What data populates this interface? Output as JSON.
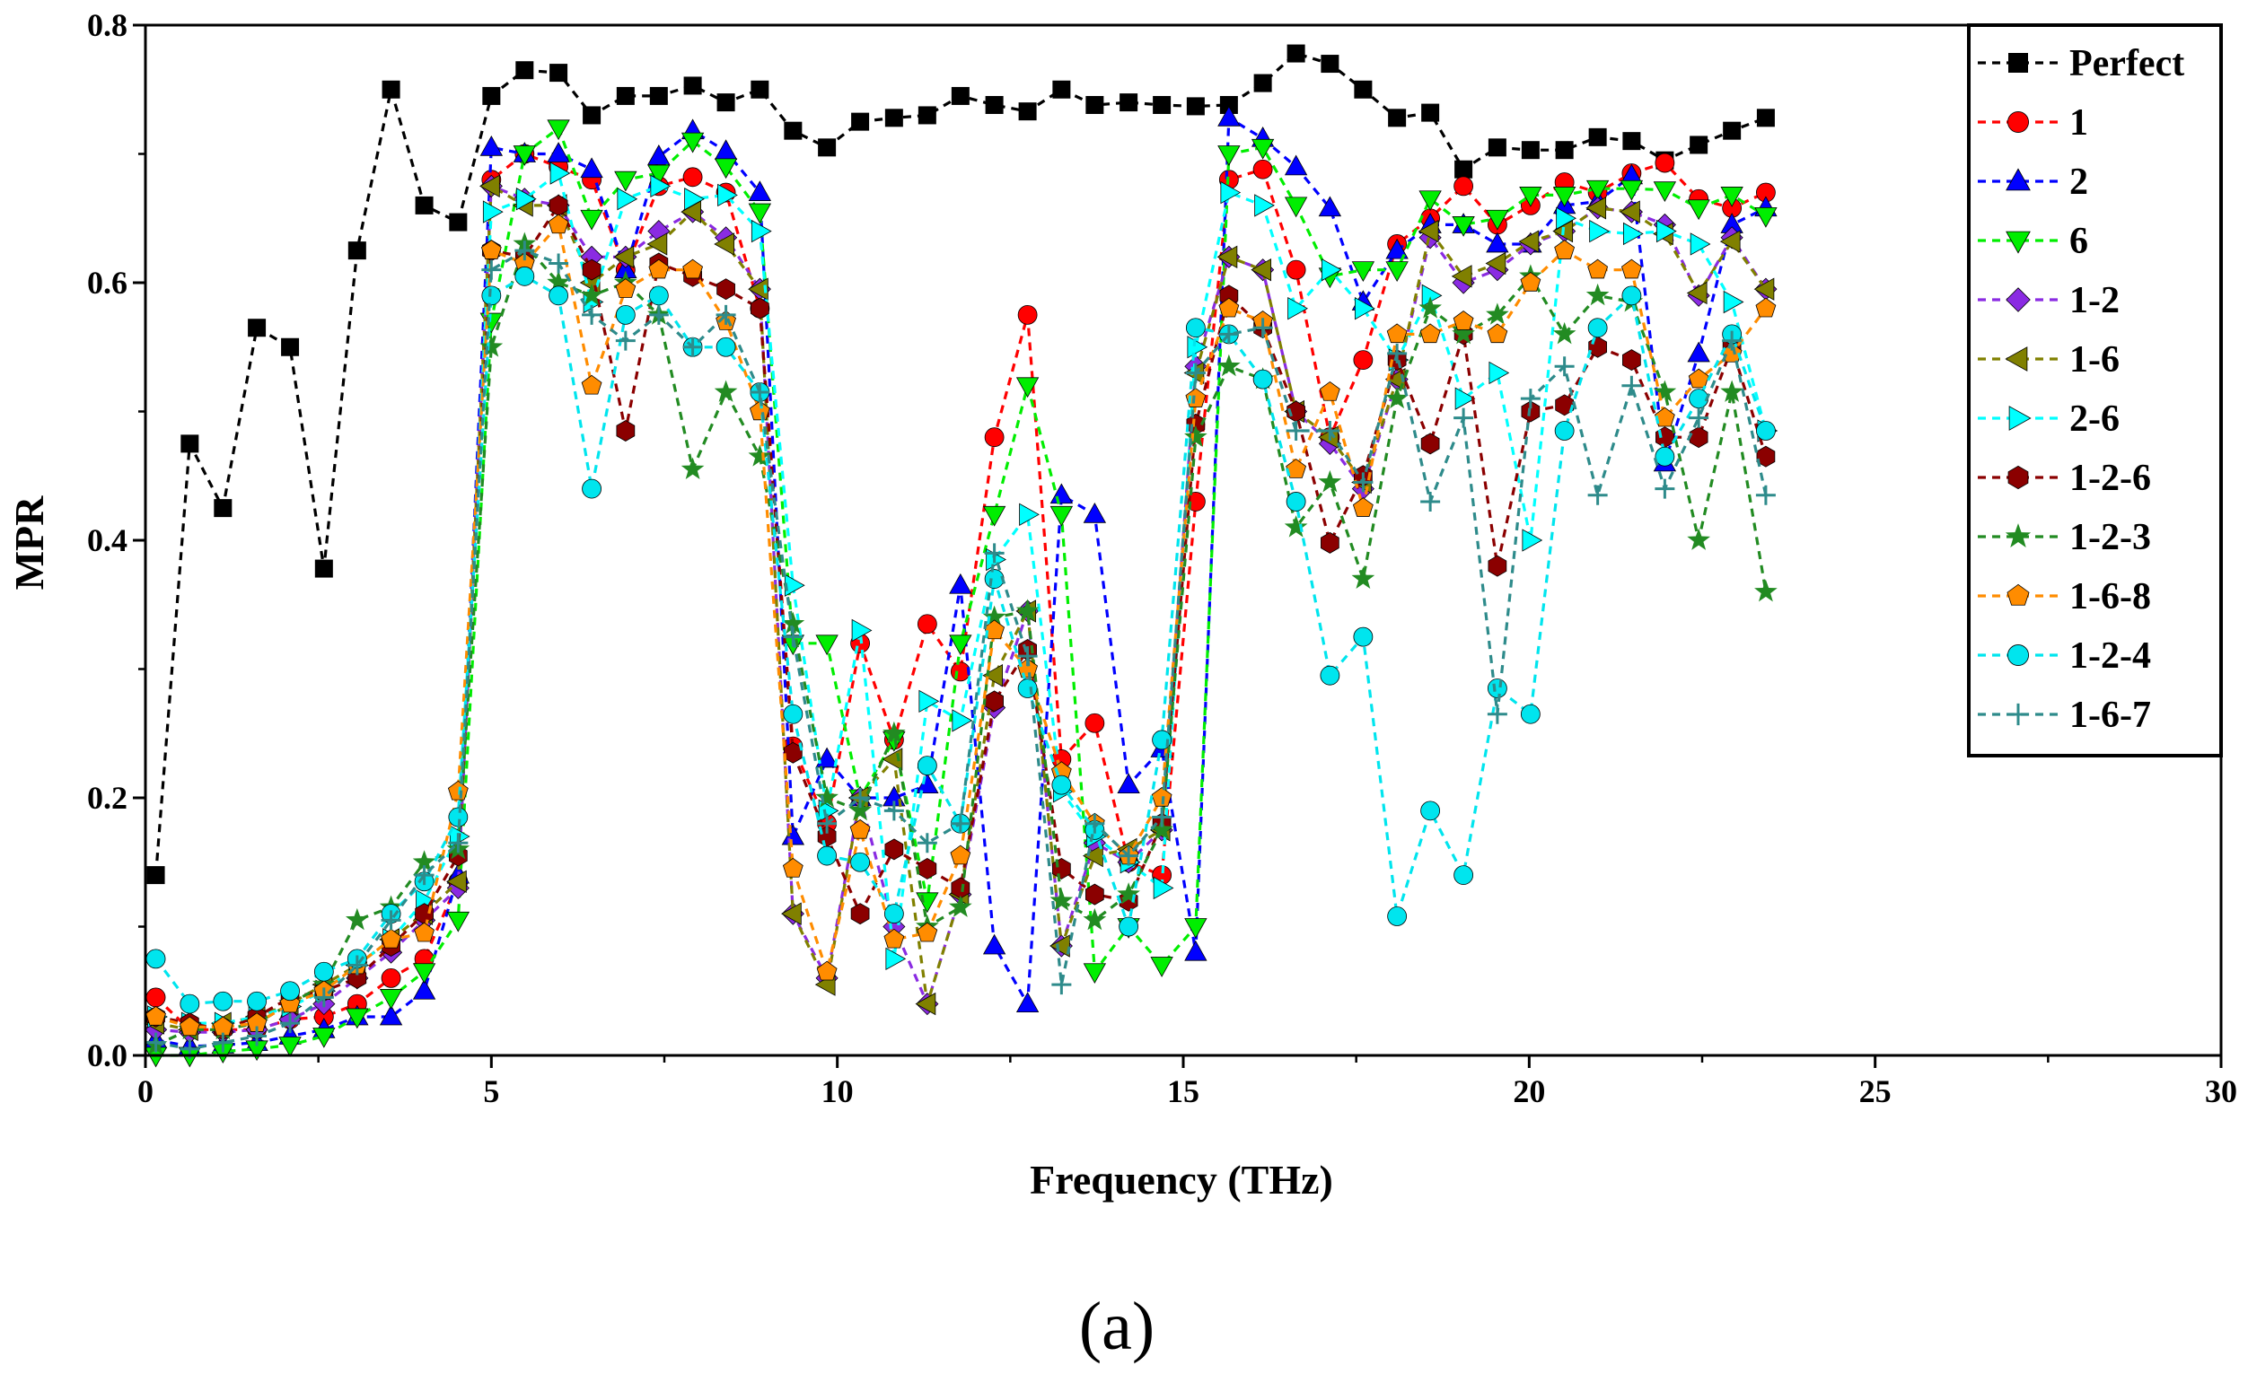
{
  "chart_data": {
    "type": "line",
    "title": "",
    "caption": "(a)",
    "xlabel": "Frequency (THz)",
    "ylabel": "MPR",
    "xlim": [
      0,
      30
    ],
    "ylim": [
      0,
      0.8
    ],
    "x_ticks": [
      0,
      5,
      10,
      15,
      20,
      25,
      30
    ],
    "y_ticks": [
      0.0,
      0.2,
      0.4,
      0.6,
      0.8
    ],
    "x_tick_labels": [
      "0",
      "5",
      "10",
      "15",
      "20",
      "25",
      "30"
    ],
    "y_tick_labels": [
      "0.0",
      "0.2",
      "0.4",
      "0.6",
      "0.8"
    ],
    "legend_position": "top-right",
    "x": [
      0.15,
      0.64,
      1.12,
      1.61,
      2.09,
      2.58,
      3.06,
      3.55,
      4.03,
      4.52,
      5.0,
      5.48,
      5.97,
      6.45,
      6.94,
      7.42,
      7.91,
      8.39,
      8.88,
      9.36,
      9.85,
      10.33,
      10.82,
      11.3,
      11.78,
      12.27,
      12.75,
      13.24,
      13.72,
      14.21,
      14.69,
      15.18,
      15.66,
      16.15,
      16.63,
      17.12,
      17.6,
      18.09,
      18.57,
      19.05,
      19.54,
      20.02,
      20.51,
      20.99,
      21.48,
      21.96,
      22.45,
      22.93,
      23.42
    ],
    "series": [
      {
        "name": "Perfect",
        "color": "#000000",
        "marker": "square",
        "values": [
          0.14,
          0.475,
          0.425,
          0.565,
          0.55,
          0.378,
          0.625,
          0.75,
          0.66,
          0.647,
          0.745,
          0.765,
          0.763,
          0.73,
          0.745,
          0.745,
          0.753,
          0.74,
          0.75,
          0.718,
          0.705,
          0.725,
          0.728,
          0.73,
          0.745,
          0.738,
          0.733,
          0.75,
          0.738,
          0.74,
          0.738,
          0.737,
          0.738,
          0.755,
          0.778,
          0.77,
          0.75,
          0.728,
          0.732,
          0.688,
          0.705,
          0.703,
          0.703,
          0.713,
          0.71,
          0.695,
          0.707,
          0.718,
          0.728
        ]
      },
      {
        "name": "1",
        "color": "#ff0000",
        "marker": "circle",
        "values": [
          0.045,
          0.02,
          0.02,
          0.02,
          0.028,
          0.03,
          0.04,
          0.06,
          0.075,
          0.135,
          0.68,
          0.7,
          0.69,
          0.68,
          0.61,
          0.675,
          0.682,
          0.67,
          0.58,
          0.24,
          0.18,
          0.32,
          0.245,
          0.335,
          0.298,
          0.48,
          0.575,
          0.23,
          0.258,
          0.15,
          0.14,
          0.43,
          0.68,
          0.688,
          0.61,
          0.48,
          0.54,
          0.63,
          0.65,
          0.675,
          0.645,
          0.66,
          0.678,
          0.67,
          0.685,
          0.693,
          0.665,
          0.658,
          0.67
        ]
      },
      {
        "name": "2",
        "color": "#0000ff",
        "marker": "triangle-up",
        "values": [
          0.012,
          0.007,
          0.008,
          0.01,
          0.015,
          0.02,
          0.03,
          0.03,
          0.05,
          0.14,
          0.705,
          0.7,
          0.7,
          0.688,
          0.61,
          0.698,
          0.718,
          0.702,
          0.67,
          0.17,
          0.23,
          0.2,
          0.2,
          0.21,
          0.365,
          0.085,
          0.04,
          0.435,
          0.42,
          0.21,
          0.238,
          0.08,
          0.728,
          0.712,
          0.69,
          0.658,
          0.585,
          0.625,
          0.645,
          0.645,
          0.63,
          0.63,
          0.66,
          0.663,
          0.683,
          0.46,
          0.545,
          0.645,
          0.658
        ]
      },
      {
        "name": "6",
        "color": "#00ee00",
        "marker": "triangle-down",
        "values": [
          0.0,
          0.0,
          0.003,
          0.005,
          0.008,
          0.015,
          0.03,
          0.045,
          0.065,
          0.105,
          0.57,
          0.7,
          0.72,
          0.65,
          0.68,
          0.685,
          0.71,
          0.69,
          0.655,
          0.32,
          0.32,
          0.2,
          0.245,
          0.12,
          0.32,
          0.42,
          0.52,
          0.42,
          0.065,
          0.1,
          0.07,
          0.1,
          0.7,
          0.705,
          0.66,
          0.605,
          0.61,
          0.61,
          0.665,
          0.645,
          0.65,
          0.668,
          0.668,
          0.673,
          0.673,
          0.672,
          0.658,
          0.668,
          0.652
        ]
      },
      {
        "name": "1-2",
        "color": "#8a2be2",
        "marker": "diamond",
        "values": [
          0.02,
          0.018,
          0.018,
          0.02,
          0.028,
          0.04,
          0.06,
          0.08,
          0.105,
          0.13,
          0.675,
          0.665,
          0.66,
          0.62,
          0.62,
          0.64,
          0.655,
          0.635,
          0.595,
          0.11,
          0.06,
          0.2,
          0.1,
          0.04,
          0.125,
          0.27,
          0.345,
          0.085,
          0.165,
          0.15,
          0.175,
          0.535,
          0.62,
          0.61,
          0.5,
          0.475,
          0.44,
          0.525,
          0.635,
          0.6,
          0.61,
          0.63,
          0.64,
          0.658,
          0.655,
          0.645,
          0.59,
          0.635,
          0.595
        ]
      },
      {
        "name": "1-6",
        "color": "#808000",
        "marker": "triangle-left",
        "values": [
          0.025,
          0.02,
          0.025,
          0.03,
          0.04,
          0.055,
          0.07,
          0.09,
          0.11,
          0.135,
          0.675,
          0.66,
          0.66,
          0.6,
          0.62,
          0.63,
          0.655,
          0.63,
          0.595,
          0.11,
          0.055,
          0.2,
          0.23,
          0.04,
          0.125,
          0.295,
          0.345,
          0.085,
          0.155,
          0.16,
          0.175,
          0.53,
          0.62,
          0.61,
          0.5,
          0.48,
          0.445,
          0.525,
          0.64,
          0.605,
          0.615,
          0.632,
          0.64,
          0.658,
          0.655,
          0.638,
          0.592,
          0.632,
          0.595
        ]
      },
      {
        "name": "2-6",
        "color": "#00ffff",
        "marker": "triangle-right",
        "values": [
          0.03,
          0.025,
          0.025,
          0.03,
          0.038,
          0.05,
          0.07,
          0.09,
          0.12,
          0.17,
          0.655,
          0.665,
          0.685,
          0.585,
          0.665,
          0.675,
          0.665,
          0.668,
          0.64,
          0.365,
          0.19,
          0.33,
          0.075,
          0.275,
          0.26,
          0.385,
          0.42,
          0.205,
          0.17,
          0.15,
          0.13,
          0.55,
          0.67,
          0.66,
          0.58,
          0.61,
          0.58,
          0.54,
          0.59,
          0.51,
          0.53,
          0.4,
          0.65,
          0.64,
          0.638,
          0.64,
          0.63,
          0.585,
          0.485
        ]
      },
      {
        "name": "1-2-6",
        "color": "#8b0000",
        "marker": "hexagon",
        "values": [
          0.03,
          0.025,
          0.02,
          0.03,
          0.045,
          0.05,
          0.06,
          0.085,
          0.11,
          0.155,
          0.625,
          0.62,
          0.66,
          0.61,
          0.485,
          0.615,
          0.605,
          0.595,
          0.58,
          0.235,
          0.17,
          0.11,
          0.16,
          0.145,
          0.13,
          0.275,
          0.315,
          0.145,
          0.125,
          0.12,
          0.18,
          0.49,
          0.59,
          0.565,
          0.5,
          0.398,
          0.45,
          0.54,
          0.475,
          0.56,
          0.38,
          0.5,
          0.505,
          0.55,
          0.54,
          0.48,
          0.48,
          0.55,
          0.465
        ]
      },
      {
        "name": "1-2-3",
        "color": "#228b22",
        "marker": "star",
        "values": [
          0.008,
          0.02,
          0.02,
          0.025,
          0.04,
          0.055,
          0.105,
          0.115,
          0.15,
          0.16,
          0.55,
          0.63,
          0.6,
          0.59,
          0.6,
          0.575,
          0.455,
          0.515,
          0.465,
          0.335,
          0.2,
          0.19,
          0.25,
          0.1,
          0.115,
          0.34,
          0.345,
          0.12,
          0.105,
          0.125,
          0.175,
          0.48,
          0.535,
          0.525,
          0.41,
          0.445,
          0.37,
          0.51,
          0.58,
          0.56,
          0.575,
          0.605,
          0.56,
          0.59,
          0.585,
          0.515,
          0.4,
          0.515,
          0.36
        ]
      },
      {
        "name": "1-6-8",
        "color": "#ff8c00",
        "marker": "pentagon",
        "values": [
          0.03,
          0.022,
          0.022,
          0.025,
          0.04,
          0.05,
          0.07,
          0.09,
          0.095,
          0.205,
          0.625,
          0.615,
          0.645,
          0.52,
          0.595,
          0.61,
          0.61,
          0.57,
          0.5,
          0.145,
          0.065,
          0.175,
          0.09,
          0.095,
          0.155,
          0.33,
          0.3,
          0.22,
          0.18,
          0.155,
          0.2,
          0.51,
          0.58,
          0.57,
          0.455,
          0.515,
          0.425,
          0.56,
          0.56,
          0.57,
          0.56,
          0.6,
          0.625,
          0.61,
          0.61,
          0.495,
          0.525,
          0.545,
          0.58
        ]
      },
      {
        "name": "1-2-4",
        "color": "#00e5ee",
        "marker": "circle",
        "values": [
          0.075,
          0.04,
          0.042,
          0.042,
          0.05,
          0.065,
          0.075,
          0.11,
          0.135,
          0.185,
          0.59,
          0.605,
          0.59,
          0.44,
          0.575,
          0.59,
          0.55,
          0.55,
          0.515,
          0.265,
          0.155,
          0.15,
          0.11,
          0.225,
          0.18,
          0.37,
          0.285,
          0.21,
          0.175,
          0.1,
          0.245,
          0.565,
          0.56,
          0.525,
          0.43,
          0.295,
          0.325,
          0.108,
          0.19,
          0.14,
          0.285,
          0.265,
          0.485,
          0.565,
          0.59,
          0.465,
          0.51,
          0.56,
          0.485
        ]
      },
      {
        "name": "1-6-7",
        "color": "#2e8b8b",
        "marker": "plus",
        "values": [
          0.01,
          0.005,
          0.01,
          0.015,
          0.025,
          0.045,
          0.07,
          0.105,
          0.14,
          0.165,
          0.61,
          0.625,
          0.615,
          0.575,
          0.555,
          0.575,
          0.55,
          0.575,
          0.515,
          0.325,
          0.18,
          0.2,
          0.19,
          0.165,
          0.18,
          0.39,
          0.31,
          0.055,
          0.18,
          0.155,
          0.185,
          0.53,
          0.56,
          0.565,
          0.485,
          0.485,
          0.445,
          0.545,
          0.43,
          0.495,
          0.265,
          0.51,
          0.535,
          0.435,
          0.52,
          0.44,
          0.495,
          0.555,
          0.435
        ]
      }
    ]
  }
}
